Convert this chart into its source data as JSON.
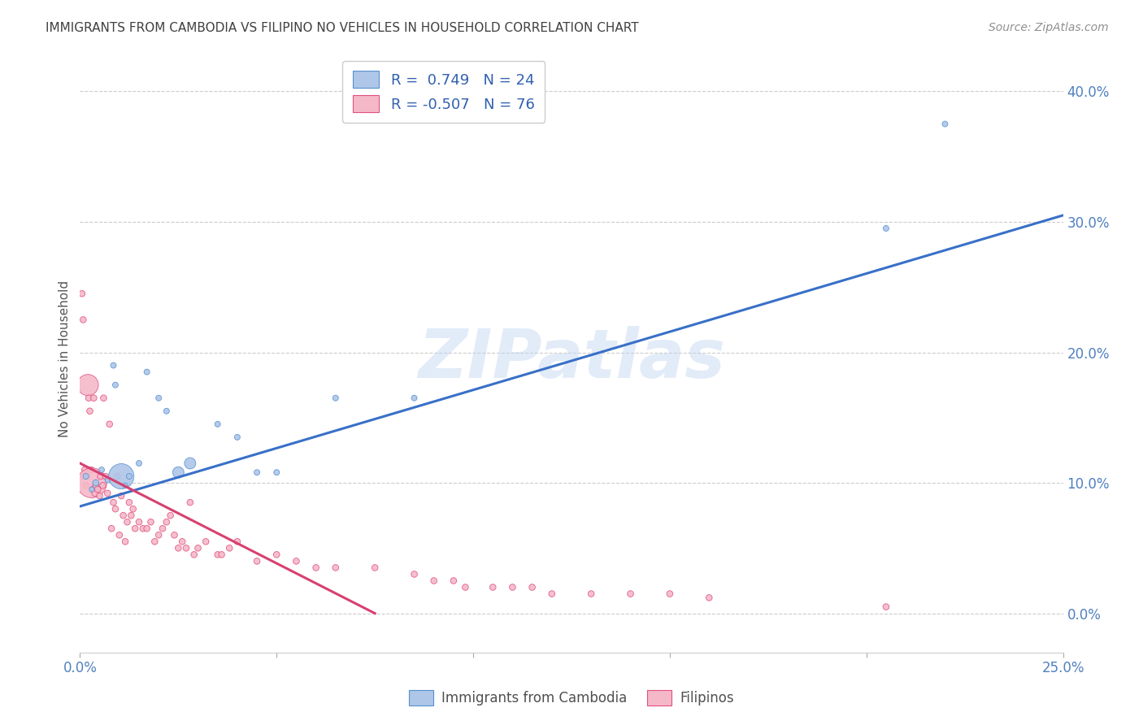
{
  "title": "IMMIGRANTS FROM CAMBODIA VS FILIPINO NO VEHICLES IN HOUSEHOLD CORRELATION CHART",
  "source": "Source: ZipAtlas.com",
  "ylabel": "No Vehicles in Household",
  "xmin": 0.0,
  "xmax": 25.0,
  "ymin": -3.0,
  "ymax": 42.0,
  "watermark": "ZIPatlas",
  "legend_r1": "R =  0.749   N = 24",
  "legend_r2": "R = -0.507   N = 76",
  "blue_color": "#aec6e8",
  "pink_color": "#f5b8c8",
  "blue_edge_color": "#5590d0",
  "pink_edge_color": "#e05080",
  "blue_line_color": "#3870c8",
  "pink_line_color": "#d84070",
  "title_color": "#404040",
  "source_color": "#909090",
  "legend_text_color": "#3060b0",
  "axis_label_color": "#5080c0",
  "blue_scatter_x": [
    0.15,
    0.3,
    0.4,
    0.55,
    0.7,
    0.85,
    0.9,
    1.05,
    1.15,
    1.25,
    1.5,
    1.7,
    2.0,
    2.2,
    2.5,
    2.8,
    3.5,
    4.0,
    4.5,
    5.0,
    6.5,
    8.5,
    20.5,
    22.0
  ],
  "blue_scatter_y": [
    10.5,
    9.5,
    10.0,
    11.0,
    10.2,
    19.0,
    17.5,
    10.5,
    9.8,
    10.5,
    11.5,
    18.5,
    16.5,
    15.5,
    10.8,
    11.5,
    14.5,
    13.5,
    10.8,
    10.8,
    16.5,
    16.5,
    29.5,
    37.5
  ],
  "blue_scatter_s": [
    25,
    20,
    30,
    25,
    20,
    25,
    25,
    500,
    20,
    25,
    25,
    25,
    25,
    25,
    100,
    100,
    25,
    25,
    25,
    25,
    25,
    25,
    25,
    25
  ],
  "pink_scatter_x": [
    0.05,
    0.08,
    0.1,
    0.12,
    0.15,
    0.18,
    0.2,
    0.22,
    0.25,
    0.28,
    0.3,
    0.33,
    0.35,
    0.38,
    0.4,
    0.45,
    0.5,
    0.52,
    0.58,
    0.6,
    0.65,
    0.7,
    0.75,
    0.8,
    0.85,
    0.9,
    0.95,
    1.0,
    1.05,
    1.1,
    1.15,
    1.2,
    1.25,
    1.3,
    1.35,
    1.4,
    1.5,
    1.6,
    1.7,
    1.8,
    1.9,
    2.0,
    2.1,
    2.2,
    2.3,
    2.4,
    2.5,
    2.6,
    2.7,
    2.8,
    2.9,
    3.0,
    3.2,
    3.5,
    3.6,
    3.8,
    4.0,
    4.5,
    5.0,
    5.5,
    6.0,
    6.5,
    7.5,
    8.5,
    9.0,
    9.5,
    9.8,
    10.5,
    11.0,
    11.5,
    12.0,
    13.0,
    14.0,
    15.0,
    16.0,
    20.5
  ],
  "pink_scatter_y": [
    24.5,
    22.5,
    10.5,
    11.0,
    9.8,
    10.5,
    17.5,
    16.5,
    15.5,
    11.0,
    10.0,
    9.5,
    16.5,
    9.2,
    9.8,
    9.5,
    9.0,
    10.5,
    9.8,
    16.5,
    10.5,
    9.2,
    14.5,
    6.5,
    8.5,
    8.0,
    10.5,
    6.0,
    9.0,
    7.5,
    5.5,
    7.0,
    8.5,
    7.5,
    8.0,
    6.5,
    7.0,
    6.5,
    6.5,
    7.0,
    5.5,
    6.0,
    6.5,
    7.0,
    7.5,
    6.0,
    5.0,
    5.5,
    5.0,
    8.5,
    4.5,
    5.0,
    5.5,
    4.5,
    4.5,
    5.0,
    5.5,
    4.0,
    4.5,
    4.0,
    3.5,
    3.5,
    3.5,
    3.0,
    2.5,
    2.5,
    2.0,
    2.0,
    2.0,
    2.0,
    1.5,
    1.5,
    1.5,
    1.5,
    1.2,
    0.5
  ],
  "pink_scatter_s": [
    30,
    30,
    30,
    30,
    30,
    30,
    350,
    30,
    30,
    30,
    700,
    30,
    30,
    30,
    30,
    30,
    30,
    30,
    30,
    30,
    30,
    30,
    30,
    30,
    30,
    30,
    30,
    30,
    30,
    30,
    30,
    30,
    30,
    30,
    30,
    30,
    30,
    30,
    30,
    30,
    30,
    30,
    30,
    30,
    30,
    30,
    30,
    30,
    30,
    30,
    30,
    30,
    30,
    30,
    30,
    30,
    30,
    30,
    30,
    30,
    30,
    30,
    30,
    30,
    30,
    30,
    30,
    30,
    30,
    30,
    30,
    30,
    30,
    30,
    30,
    30
  ],
  "blue_trend_x0": 0.0,
  "blue_trend_y0": 8.2,
  "blue_trend_x1": 25.0,
  "blue_trend_y1": 30.5,
  "pink_trend_x0": 0.0,
  "pink_trend_y0": 11.5,
  "pink_trend_x1": 7.5,
  "pink_trend_y1": 0.0,
  "xtick_positions": [
    0,
    5,
    10,
    15,
    20,
    25
  ],
  "ytick_positions": [
    0,
    10,
    20,
    30,
    40
  ]
}
